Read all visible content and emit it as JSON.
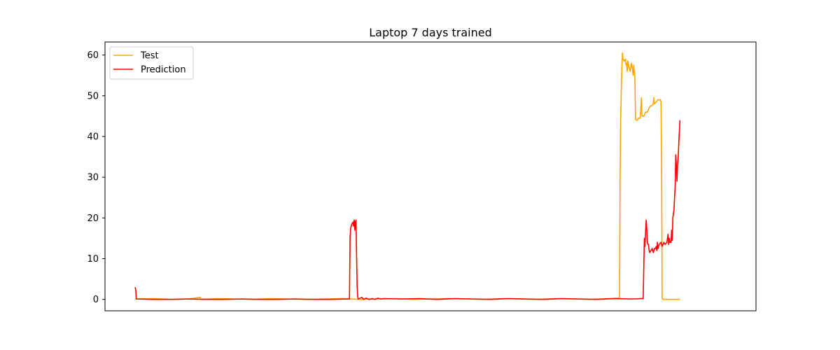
{
  "chart_data": {
    "type": "line",
    "title": "Laptop 7 days trained",
    "xlabel": "",
    "ylabel": "",
    "xlim": [
      0,
      1000
    ],
    "ylim": [
      -2.8,
      63.2
    ],
    "x_ticks_visible": false,
    "yticks": [
      0,
      10,
      20,
      30,
      40,
      50,
      60
    ],
    "grid": false,
    "legend_position": "top-left",
    "series": [
      {
        "name": "Test",
        "color": "#FFA500",
        "points": [
          [
            0,
            0.1
          ],
          [
            30,
            0.2
          ],
          [
            60,
            0.0
          ],
          [
            90,
            0.1
          ],
          [
            110,
            0.5
          ],
          [
            111,
            0.0
          ],
          [
            140,
            0.2
          ],
          [
            170,
            0.1
          ],
          [
            200,
            0.0
          ],
          [
            230,
            0.2
          ],
          [
            260,
            0.1
          ],
          [
            290,
            0.0
          ],
          [
            320,
            0.1
          ],
          [
            350,
            0.2
          ],
          [
            380,
            0.0
          ],
          [
            410,
            0.1
          ],
          [
            440,
            0.2
          ],
          [
            470,
            0.0
          ],
          [
            500,
            0.1
          ],
          [
            530,
            0.2
          ],
          [
            560,
            0.1
          ],
          [
            590,
            0.0
          ],
          [
            620,
            0.2
          ],
          [
            650,
            0.1
          ],
          [
            680,
            0.0
          ],
          [
            710,
            0.2
          ],
          [
            740,
            0.1
          ],
          [
            770,
            0.0
          ],
          [
            800,
            0.2
          ],
          [
            815,
            0.3
          ],
          [
            818,
            0.3
          ],
          [
            819,
            30.0
          ],
          [
            820,
            45.0
          ],
          [
            822,
            57.0
          ],
          [
            823,
            60.5
          ],
          [
            824,
            59.0
          ],
          [
            826,
            58.5
          ],
          [
            828,
            59.0
          ],
          [
            829,
            57.5
          ],
          [
            830,
            58.0
          ],
          [
            831,
            56.0
          ],
          [
            832,
            58.5
          ],
          [
            834,
            57.0
          ],
          [
            836,
            56.0
          ],
          [
            838,
            58.0
          ],
          [
            840,
            56.5
          ],
          [
            841,
            55.0
          ],
          [
            842,
            57.5
          ],
          [
            843,
            56.0
          ],
          [
            844,
            54.5
          ],
          [
            845,
            44.2
          ],
          [
            846,
            44.0
          ],
          [
            848,
            44.0
          ],
          [
            850,
            44.5
          ],
          [
            853,
            44.5
          ],
          [
            855,
            49.5
          ],
          [
            856,
            45.0
          ],
          [
            859,
            45.0
          ],
          [
            862,
            46.0
          ],
          [
            865,
            46.0
          ],
          [
            868,
            47.0
          ],
          [
            870,
            47.5
          ],
          [
            872,
            47.5
          ],
          [
            875,
            48.0
          ],
          [
            876,
            49.5
          ],
          [
            877,
            48.0
          ],
          [
            880,
            48.5
          ],
          [
            883,
            49.0
          ],
          [
            887,
            49.0
          ],
          [
            888,
            48.5
          ],
          [
            889,
            35.0
          ],
          [
            890,
            0.2
          ],
          [
            892,
            0.0
          ],
          [
            905,
            0.0
          ],
          [
            920,
            0.0
          ]
        ]
      },
      {
        "name": "Prediction",
        "color": "#FF0000",
        "points": [
          [
            0,
            3.0
          ],
          [
            1,
            2.5
          ],
          [
            2,
            0.1
          ],
          [
            30,
            0.0
          ],
          [
            60,
            0.0
          ],
          [
            90,
            0.1
          ],
          [
            120,
            0.0
          ],
          [
            150,
            0.0
          ],
          [
            180,
            0.1
          ],
          [
            210,
            0.0
          ],
          [
            240,
            0.0
          ],
          [
            270,
            0.1
          ],
          [
            300,
            0.0
          ],
          [
            330,
            0.0
          ],
          [
            360,
            0.1
          ],
          [
            362,
            0.1
          ],
          [
            363,
            15.0
          ],
          [
            364,
            17.5
          ],
          [
            366,
            18.5
          ],
          [
            368,
            19.0
          ],
          [
            369,
            18.0
          ],
          [
            370,
            19.5
          ],
          [
            371,
            17.0
          ],
          [
            372,
            19.0
          ],
          [
            373,
            19.5
          ],
          [
            374,
            11.0
          ],
          [
            375,
            3.0
          ],
          [
            376,
            0.5
          ],
          [
            377,
            0.1
          ],
          [
            380,
            0.3
          ],
          [
            383,
            0.5
          ],
          [
            386,
            0.0
          ],
          [
            390,
            0.3
          ],
          [
            395,
            0.0
          ],
          [
            400,
            0.2
          ],
          [
            405,
            0.0
          ],
          [
            410,
            0.3
          ],
          [
            415,
            0.1
          ],
          [
            420,
            0.2
          ],
          [
            450,
            0.1
          ],
          [
            480,
            0.2
          ],
          [
            510,
            0.0
          ],
          [
            540,
            0.2
          ],
          [
            570,
            0.1
          ],
          [
            600,
            0.0
          ],
          [
            630,
            0.2
          ],
          [
            660,
            0.1
          ],
          [
            690,
            0.0
          ],
          [
            720,
            0.2
          ],
          [
            750,
            0.1
          ],
          [
            780,
            0.0
          ],
          [
            810,
            0.2
          ],
          [
            840,
            0.1
          ],
          [
            855,
            0.2
          ],
          [
            858,
            0.2
          ],
          [
            859,
            8.0
          ],
          [
            860,
            15.0
          ],
          [
            861,
            13.0
          ],
          [
            862,
            16.5
          ],
          [
            863,
            19.5
          ],
          [
            864,
            17.5
          ],
          [
            865,
            14.0
          ],
          [
            866,
            13.5
          ],
          [
            867,
            13.5
          ],
          [
            868,
            12.0
          ],
          [
            869,
            11.5
          ],
          [
            871,
            12.0
          ],
          [
            873,
            12.5
          ],
          [
            875,
            11.5
          ],
          [
            877,
            12.5
          ],
          [
            879,
            12.5
          ],
          [
            880,
            13.0
          ],
          [
            881,
            12.0
          ],
          [
            882,
            14.0
          ],
          [
            883,
            12.5
          ],
          [
            885,
            13.5
          ],
          [
            888,
            14.0
          ],
          [
            890,
            13.0
          ],
          [
            893,
            14.0
          ],
          [
            895,
            13.5
          ],
          [
            898,
            14.0
          ],
          [
            900,
            16.0
          ],
          [
            901,
            13.5
          ],
          [
            902,
            15.0
          ],
          [
            903,
            14.0
          ],
          [
            905,
            14.0
          ],
          [
            906,
            17.0
          ],
          [
            907,
            14.5
          ],
          [
            908,
            20.0
          ],
          [
            910,
            22.0
          ],
          [
            912,
            28.0
          ],
          [
            913,
            35.5
          ],
          [
            914,
            33.0
          ],
          [
            915,
            29.0
          ],
          [
            916,
            33.0
          ],
          [
            917,
            34.5
          ],
          [
            918,
            38.0
          ],
          [
            919,
            41.0
          ],
          [
            920,
            44.0
          ]
        ]
      }
    ]
  }
}
